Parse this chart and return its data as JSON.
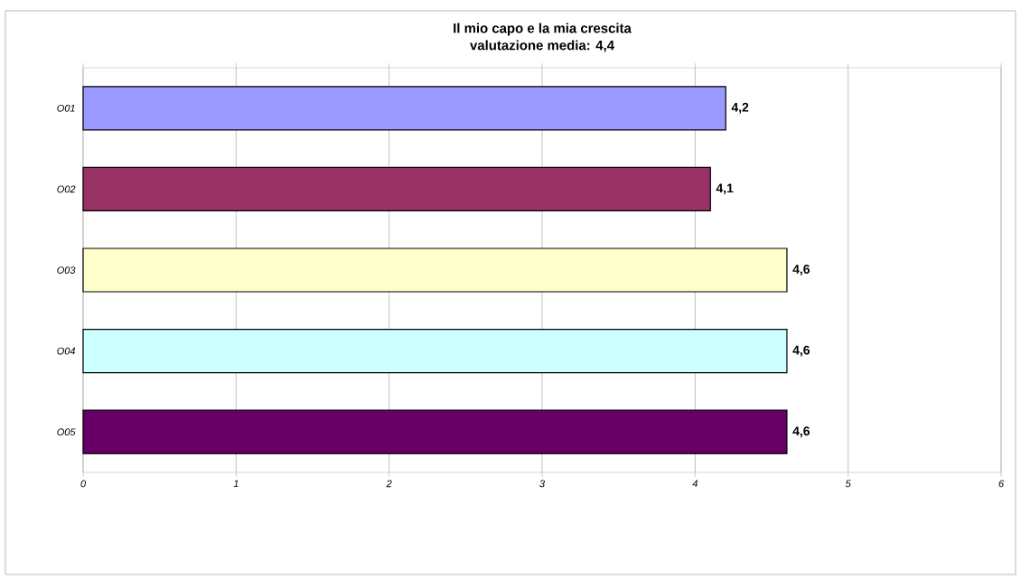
{
  "chart_data": {
    "type": "bar",
    "orientation": "horizontal",
    "title": "Il mio capo e la mia crescita",
    "subtitle": "valutazione media: 4,4",
    "categories": [
      "O01",
      "O02",
      "O03",
      "O04",
      "O05"
    ],
    "values": [
      4.2,
      4.1,
      4.6,
      4.6,
      4.6
    ],
    "value_labels": [
      "4,2",
      "4,1",
      "4,6",
      "4,6",
      "4,6"
    ],
    "colors": [
      "#9999ff",
      "#993366",
      "#ffffcc",
      "#ccffff",
      "#660066"
    ],
    "xlim": [
      0,
      6
    ],
    "xticks": [
      0,
      1,
      2,
      3,
      4,
      5,
      6
    ],
    "grid": "x"
  }
}
